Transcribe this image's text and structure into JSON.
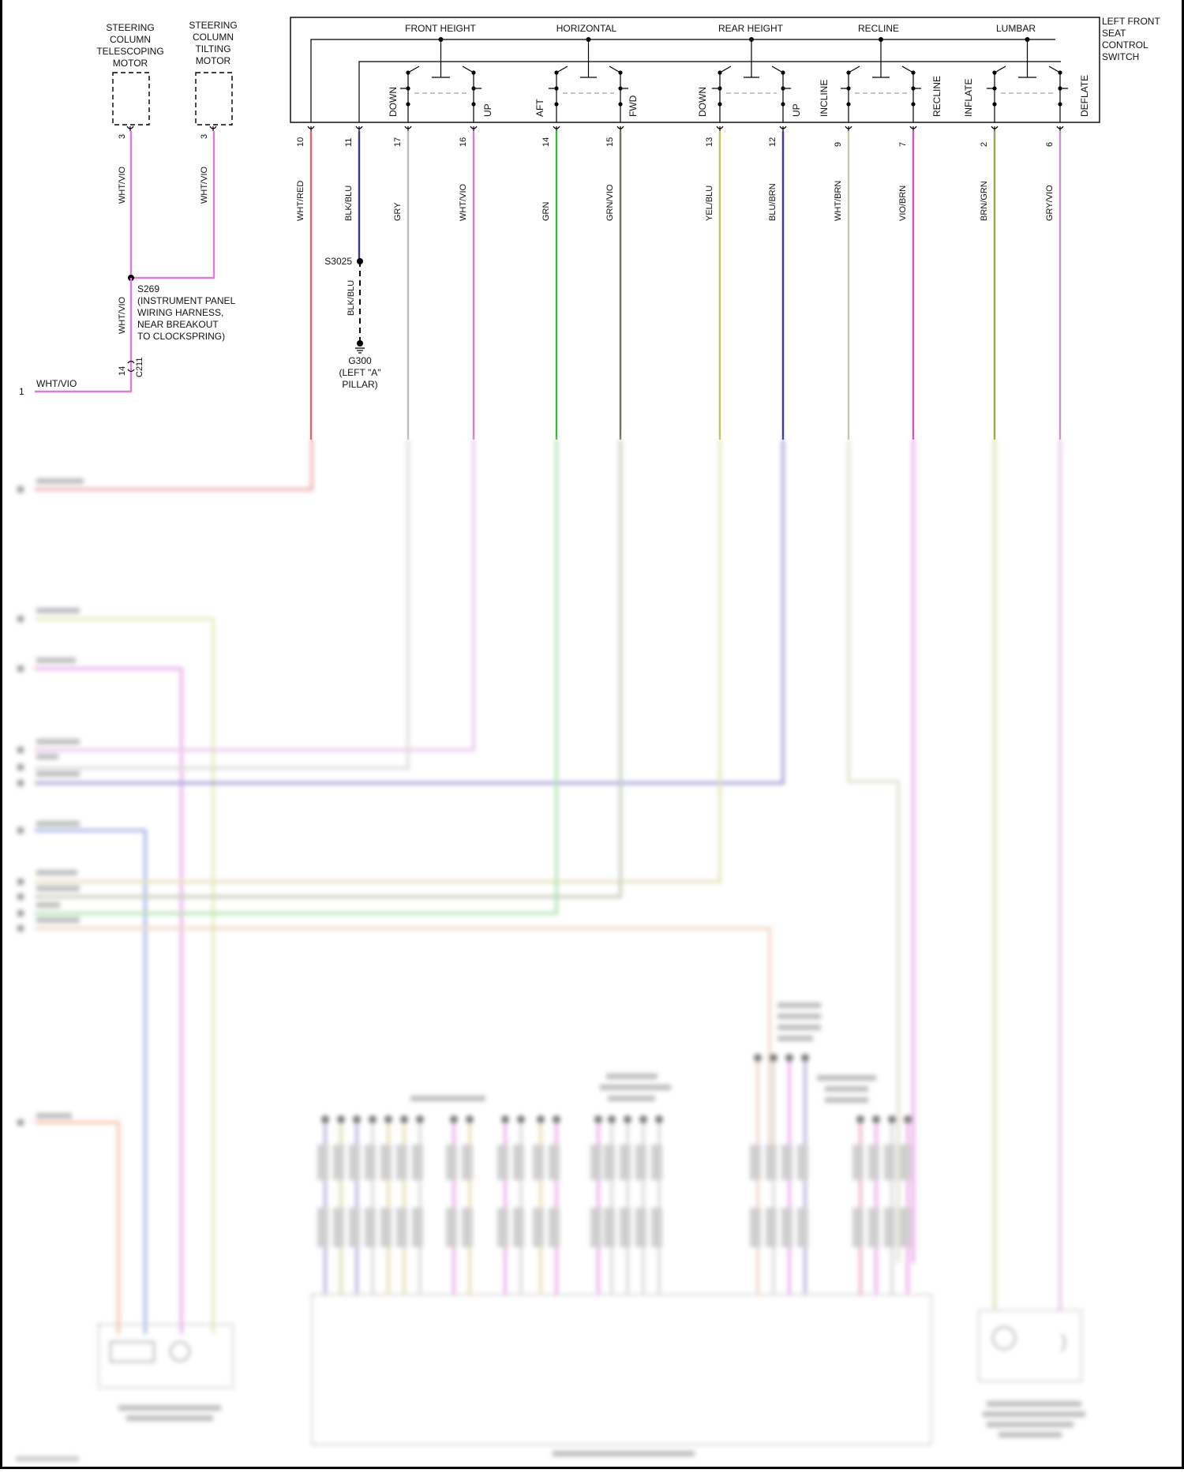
{
  "telescoping_motor": {
    "label_lines": [
      "STEERING",
      "COLUMN",
      "TELESCOPING",
      "MOTOR"
    ],
    "pin": "3",
    "wire": "WHT/VIO"
  },
  "tilting_motor": {
    "label_lines": [
      "STEERING",
      "COLUMN",
      "TILTING",
      "MOTOR"
    ],
    "pin": "3",
    "wire": "WHT/VIO"
  },
  "splice_s269": {
    "label_lines": [
      "S269",
      "(INSTRUMENT PANEL",
      "WIRING HARNESS,",
      "NEAR BREAKOUT",
      "TO CLOCKSPRING)"
    ],
    "wire_below": "WHT/VIO"
  },
  "connector_c211": {
    "name": "C211",
    "pin": "14"
  },
  "left_lead": {
    "pin": "1",
    "wire": "WHT/VIO"
  },
  "seat_switch": {
    "label_lines": [
      "LEFT FRONT",
      "SEAT",
      "CONTROL",
      "SWITCH"
    ],
    "groups": [
      "FRONT HEIGHT",
      "HORIZONTAL",
      "REAR HEIGHT",
      "RECLINE",
      "LUMBAR"
    ],
    "contacts": [
      "DOWN",
      "UP",
      "AFT",
      "FWD",
      "DOWN",
      "UP",
      "INCLINE",
      "RECLINE",
      "INFLATE",
      "DEFLATE"
    ]
  },
  "switch_pins": [
    {
      "pin": "10",
      "wire": "WHT/RED"
    },
    {
      "pin": "11",
      "wire": "BLK/BLU"
    },
    {
      "pin": "17",
      "wire": "GRY"
    },
    {
      "pin": "16",
      "wire": "WHT/VIO"
    },
    {
      "pin": "14",
      "wire": "GRN"
    },
    {
      "pin": "15",
      "wire": "GRN/VIO"
    },
    {
      "pin": "13",
      "wire": "YEL/BLU"
    },
    {
      "pin": "12",
      "wire": "BLU/BRN"
    },
    {
      "pin": "9",
      "wire": "WHT/BRN"
    },
    {
      "pin": "7",
      "wire": "VIO/BRN"
    },
    {
      "pin": "2",
      "wire": "BRN/GRN"
    },
    {
      "pin": "6",
      "wire": "GRY/VIO"
    }
  ],
  "splice_s3025": {
    "name": "S3025",
    "wire": "BLK/BLU"
  },
  "ground_g300": {
    "label_lines": [
      "G300",
      "(LEFT \"A\"",
      "PILLAR)"
    ]
  },
  "colors": {
    "WHT/VIO": "#e07ad8",
    "WHT/RED": "#e8606a",
    "BLK/BLU": "#3a3a8a",
    "GRY": "#bdbdbd",
    "GRN": "#3cb83c",
    "GRN/VIO": "#6a7a5a",
    "YEL/BLU": "#c9c25a",
    "BLU/BRN": "#3a3aa0",
    "WHT/BRN": "#c8c8a8",
    "VIO/BRN": "#d050c0",
    "BRN/GRN": "#9aa850",
    "GRY/VIO": "#c896c8"
  }
}
